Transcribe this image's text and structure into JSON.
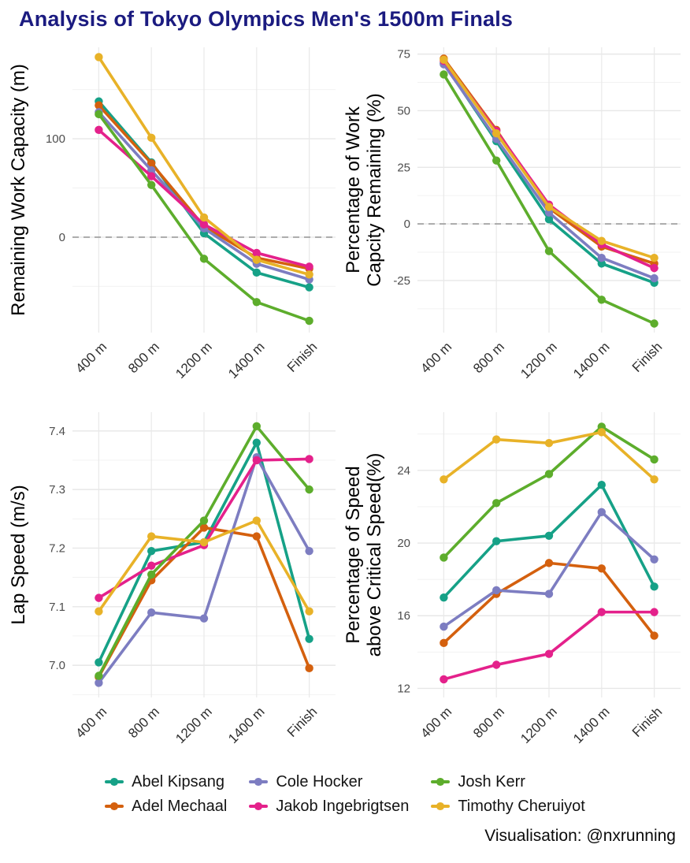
{
  "title": "Analysis of Tokyo Olympics Men's 1500m Finals",
  "caption": "Visualisation: @nxrunning",
  "colors": {
    "Abel Kipsang": "#16a187",
    "Adel Mechaal": "#d4600e",
    "Cole Hocker": "#7d7dc1",
    "Jakob Ingebrigtsen": "#e4218b",
    "Josh Kerr": "#5dad2c",
    "Timothy Cheruiyot": "#e8b228"
  },
  "legend": [
    {
      "label": "Abel Kipsang",
      "color": "#16a187"
    },
    {
      "label": "Adel Mechaal",
      "color": "#d4600e"
    },
    {
      "label": "Cole Hocker",
      "color": "#7d7dc1"
    },
    {
      "label": "Jakob Ingebrigtsen",
      "color": "#e4218b"
    },
    {
      "label": "Josh Kerr",
      "color": "#5dad2c"
    },
    {
      "label": "Timothy Cheruiyot",
      "color": "#e8b228"
    }
  ],
  "chart_data": [
    {
      "type": "line",
      "ylabel_lines": [
        "Remaining Work Capacity (m)"
      ],
      "xlabel": "",
      "categories": [
        "400 m",
        "800 m",
        "1200 m",
        "1400 m",
        "Finish"
      ],
      "ylim": [
        -97,
        193
      ],
      "ytick_values": [
        0,
        100
      ],
      "ytick_labels": [
        "0",
        "100"
      ],
      "ygrid_minor": [
        -50,
        50,
        150
      ],
      "ref_line": 0,
      "legend_position": "bottom",
      "series": [
        {
          "name": "Abel Kipsang",
          "values": [
            138,
            76,
            4,
            -36,
            -51
          ]
        },
        {
          "name": "Adel Mechaal",
          "values": [
            134,
            75,
            11,
            -21,
            -32
          ]
        },
        {
          "name": "Cole Hocker",
          "values": [
            127,
            68,
            9,
            -27,
            -43
          ]
        },
        {
          "name": "Jakob Ingebrigtsen",
          "values": [
            109,
            62,
            13,
            -16,
            -30
          ]
        },
        {
          "name": "Josh Kerr",
          "values": [
            125,
            53,
            -22,
            -66,
            -85
          ]
        },
        {
          "name": "Timothy Cheruiyot",
          "values": [
            183,
            101,
            20,
            -23,
            -38
          ]
        }
      ]
    },
    {
      "type": "line",
      "ylabel_lines": [
        "Percentage of Work",
        "Capcity Remaining (%)"
      ],
      "xlabel": "",
      "categories": [
        "400 m",
        "800 m",
        "1200 m",
        "1400 m",
        "Finish"
      ],
      "ylim": [
        -48,
        78
      ],
      "ytick_values": [
        -25,
        0,
        25,
        50,
        75
      ],
      "ytick_labels": [
        "-25",
        "0",
        "25",
        "50",
        "75"
      ],
      "ygrid_minor": [
        -37.5,
        -12.5,
        12.5,
        37.5,
        62.5
      ],
      "ref_line": 0,
      "legend_position": "bottom",
      "series": [
        {
          "name": "Abel Kipsang",
          "values": [
            71,
            36.5,
            2,
            -17.5,
            -26
          ]
        },
        {
          "name": "Adel Mechaal",
          "values": [
            73,
            41.5,
            7,
            -10,
            -17.5
          ]
        },
        {
          "name": "Cole Hocker",
          "values": [
            70.5,
            37.5,
            5,
            -15,
            -24
          ]
        },
        {
          "name": "Jakob Ingebrigtsen",
          "values": [
            72,
            41,
            8.5,
            -9,
            -19.5
          ]
        },
        {
          "name": "Josh Kerr",
          "values": [
            66,
            28,
            -12,
            -33.5,
            -44
          ]
        },
        {
          "name": "Timothy Cheruiyot",
          "values": [
            72.5,
            40,
            7.5,
            -7.5,
            -15
          ]
        }
      ]
    },
    {
      "type": "line",
      "ylabel_lines": [
        "Lap Speed (m/s)"
      ],
      "xlabel": "",
      "categories": [
        "400 m",
        "800 m",
        "1200 m",
        "1400 m",
        "Finish"
      ],
      "ylim": [
        6.945,
        7.432
      ],
      "ytick_values": [
        7.0,
        7.1,
        7.2,
        7.3,
        7.4
      ],
      "ytick_labels": [
        "7.0",
        "7.1",
        "7.2",
        "7.3",
        "7.4"
      ],
      "ygrid_minor": [
        6.95,
        7.05,
        7.15,
        7.25,
        7.35
      ],
      "ref_line": null,
      "legend_position": "bottom",
      "series": [
        {
          "name": "Abel Kipsang",
          "values": [
            7.005,
            7.195,
            7.21,
            7.38,
            7.045
          ]
        },
        {
          "name": "Adel Mechaal",
          "values": [
            6.98,
            7.145,
            7.235,
            7.22,
            6.995
          ]
        },
        {
          "name": "Cole Hocker",
          "values": [
            6.97,
            7.09,
            7.08,
            7.355,
            7.195
          ]
        },
        {
          "name": "Jakob Ingebrigtsen",
          "values": [
            7.115,
            7.17,
            7.205,
            7.35,
            7.352
          ]
        },
        {
          "name": "Josh Kerr",
          "values": [
            6.982,
            7.155,
            7.247,
            7.408,
            7.3
          ]
        },
        {
          "name": "Timothy Cheruiyot",
          "values": [
            7.092,
            7.22,
            7.21,
            7.247,
            7.092
          ]
        }
      ]
    },
    {
      "type": "line",
      "ylabel_lines": [
        "Percentage of Speed",
        "above Critical Speed(%)"
      ],
      "xlabel": "",
      "categories": [
        "400 m",
        "800 m",
        "1200 m",
        "1400 m",
        "Finish"
      ],
      "ylim": [
        11.5,
        27.2
      ],
      "ytick_values": [
        12,
        16,
        20,
        24
      ],
      "ytick_labels": [
        "12",
        "16",
        "20",
        "24"
      ],
      "ygrid_minor": [
        14,
        18,
        22,
        26
      ],
      "ref_line": null,
      "legend_position": "bottom",
      "series": [
        {
          "name": "Abel Kipsang",
          "values": [
            17.0,
            20.1,
            20.4,
            23.2,
            17.6
          ]
        },
        {
          "name": "Adel Mechaal",
          "values": [
            14.5,
            17.2,
            18.9,
            18.6,
            14.9
          ]
        },
        {
          "name": "Cole Hocker",
          "values": [
            15.4,
            17.4,
            17.2,
            21.7,
            19.1
          ]
        },
        {
          "name": "Jakob Ingebrigtsen",
          "values": [
            12.5,
            13.3,
            13.9,
            16.2,
            16.2
          ]
        },
        {
          "name": "Josh Kerr",
          "values": [
            19.2,
            22.2,
            23.8,
            26.4,
            24.6
          ]
        },
        {
          "name": "Timothy Cheruiyot",
          "values": [
            23.5,
            25.7,
            25.5,
            26.1,
            23.5
          ]
        }
      ]
    }
  ]
}
